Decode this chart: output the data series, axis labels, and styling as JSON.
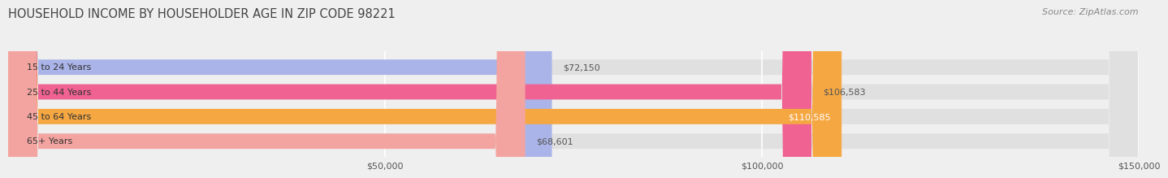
{
  "title": "HOUSEHOLD INCOME BY HOUSEHOLDER AGE IN ZIP CODE 98221",
  "source": "Source: ZipAtlas.com",
  "categories": [
    "15 to 24 Years",
    "25 to 44 Years",
    "45 to 64 Years",
    "65+ Years"
  ],
  "values": [
    72150,
    106583,
    110585,
    68601
  ],
  "bar_colors": [
    "#aab4e8",
    "#f06292",
    "#f5a742",
    "#f4a4a0"
  ],
  "bar_labels": [
    "$72,150",
    "$106,583",
    "$110,585",
    "$68,601"
  ],
  "label_colors": [
    "#555555",
    "#555555",
    "#ffffff",
    "#555555"
  ],
  "xlim": [
    0,
    150000
  ],
  "xticks": [
    50000,
    100000,
    150000
  ],
  "xticklabels": [
    "$50,000",
    "$100,000",
    "$150,000"
  ],
  "background_color": "#efefef",
  "bar_bg_color": "#e0e0e0",
  "title_fontsize": 10.5,
  "source_fontsize": 8,
  "tick_fontsize": 8,
  "bar_label_fontsize": 8,
  "category_fontsize": 8
}
